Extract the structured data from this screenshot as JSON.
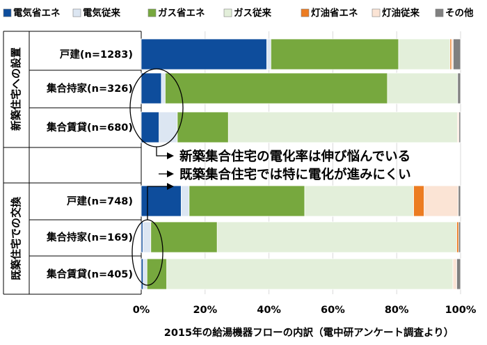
{
  "chart_data": {
    "type": "bar",
    "stacked": true,
    "orientation": "horizontal",
    "legend_position": "top",
    "grid": true,
    "xlim": [
      0,
      100
    ],
    "xticks": [
      "0%",
      "20%",
      "40%",
      "60%",
      "80%",
      "100%"
    ],
    "xlabel": "2015年の給湯機器フローの内訳（電中研アンケート調査より）",
    "groups": [
      {
        "label": "新築住宅への設置",
        "categories": [
          "戸建(n=1283)",
          "集合持家(n=326)",
          "集合賃貸(n=680)"
        ]
      },
      {
        "label": "既築住宅での交換",
        "categories": [
          "戸建(n=748)",
          "集合持家(n=169)",
          "集合賃貸(n=405)"
        ]
      }
    ],
    "categories": [
      "戸建(n=1283)",
      "集合持家(n=326)",
      "集合賃貸(n=680)",
      "戸建(n=748)",
      "集合持家(n=169)",
      "集合賃貸(n=405)"
    ],
    "series": [
      {
        "name": "電気省エネ",
        "color": "#0e4d9c",
        "values": [
          39.3,
          6.3,
          5.6,
          12.5,
          0.5,
          0.6
        ]
      },
      {
        "name": "電気従来",
        "color": "#dce6f2",
        "values": [
          1.3,
          1.2,
          5.7,
          2.5,
          2.5,
          1.2
        ]
      },
      {
        "name": "ガス省エネ",
        "color": "#77a83e",
        "values": [
          40.0,
          69.6,
          16.0,
          36.2,
          20.8,
          6.2
        ]
      },
      {
        "name": "ガス従来",
        "color": "#e3efda",
        "values": [
          16.1,
          22.0,
          71.7,
          34.1,
          75.0,
          89.6
        ]
      },
      {
        "name": "灯油省エネ",
        "color": "#ec7c22",
        "values": [
          0.5,
          0.0,
          0.0,
          3.3,
          0.6,
          0.0
        ]
      },
      {
        "name": "灯油従来",
        "color": "#fbe4d5",
        "values": [
          0.5,
          0.0,
          0.5,
          10.7,
          0.0,
          1.2
        ]
      },
      {
        "name": "その他",
        "color": "#808080",
        "values": [
          2.3,
          0.9,
          0.5,
          0.7,
          0.6,
          1.2
        ]
      }
    ],
    "annotations": [
      "新築集合住宅の電化率は伸び悩んでいる",
      "既築集合住宅では特に電化が進みにくい"
    ]
  }
}
